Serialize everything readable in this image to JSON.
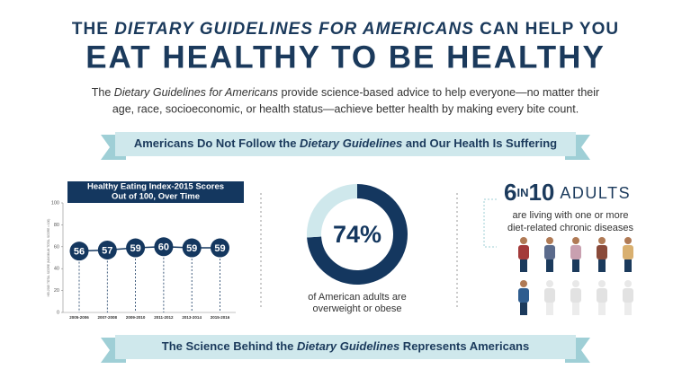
{
  "header": {
    "line1": [
      "THE ",
      "DIETARY GUIDELINES FOR AMERICANS",
      " CAN HELP YOU"
    ],
    "line2": "EAT HEALTHY TO BE HEALTHY"
  },
  "intro": {
    "line1": [
      "The ",
      "Dietary Guidelines for Americans",
      " provide science-based advice to help everyone—no matter their"
    ],
    "line2": "age, race, socioeconomic, or health status—achieve better health by making every bite count."
  },
  "banner1": [
    "Americans Do Not Follow the ",
    "Dietary Guidelines",
    " and Our Health Is Suffering"
  ],
  "banner2": [
    "The Science Behind the ",
    "Dietary Guidelines",
    " Represents Americans"
  ],
  "stat": {
    "number1": "6",
    "word": "IN",
    "number2": "10",
    "noun": "ADULTS",
    "line1": "are living with one or more",
    "line2": "diet-related chronic diseases"
  },
  "chart_data": [
    {
      "type": "line",
      "title": [
        "Healthy Eating Index-2015 Scores",
        "Out of 100, Over Time"
      ],
      "y_label": "HEI-2015 TOTAL SCORE (MAXIMUM TOTAL SCORE = 100)",
      "categories": [
        "2005-2006",
        "2007-2008",
        "2009-2010",
        "2011-2012",
        "2013-2014",
        "2015-2016"
      ],
      "values": [
        56,
        57,
        59,
        60,
        59,
        59
      ],
      "color": "#14375f",
      "ylim": [
        0,
        100
      ],
      "yticks": [
        0,
        20,
        40,
        60,
        80,
        100
      ]
    },
    {
      "type": "pie",
      "values": [
        74,
        26
      ],
      "value_labels": [
        "74%",
        null
      ],
      "colors": [
        "#14375f",
        "#cfe8ec"
      ],
      "caption": [
        "of American adults are",
        "overweight or obese"
      ]
    }
  ]
}
